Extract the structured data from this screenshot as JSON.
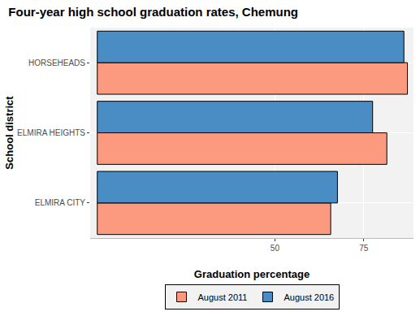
{
  "chart_data": {
    "type": "bar",
    "orientation": "horizontal",
    "title": "Four-year high school graduation rates, Chemung",
    "x_label": "Graduation percentage",
    "y_label": "School district",
    "categories": [
      "ELMIRA CITY",
      "ELMIRA HEIGHTS",
      "HORSEHEADS"
    ],
    "series": [
      {
        "name": "August 2011",
        "color": "#fc9a80",
        "values": [
          65.7,
          81.5,
          87.3
        ]
      },
      {
        "name": "August 2016",
        "color": "#4a8cc4",
        "values": [
          67.6,
          77.5,
          86.3
        ]
      }
    ],
    "xlim": [
      -2,
      89
    ],
    "xticks": [
      50,
      75
    ],
    "grid": true,
    "legend": "bottom"
  }
}
